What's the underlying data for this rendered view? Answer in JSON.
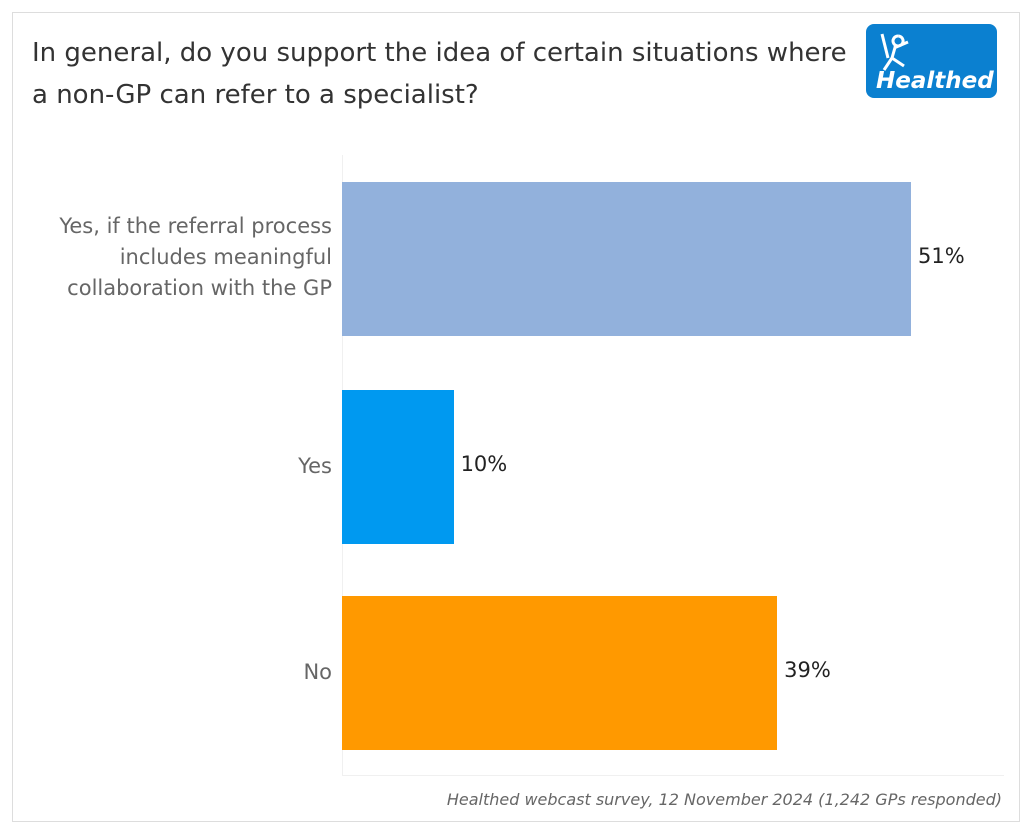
{
  "chart_data": {
    "type": "bar",
    "orientation": "horizontal",
    "title": "In general, do you support the idea of certain situations where a non-GP can refer to a specialist?",
    "categories": [
      "Yes, if the referral process includes meaningful collaboration with the GP",
      "Yes",
      "No"
    ],
    "values": [
      51,
      10,
      39
    ],
    "labels": [
      "51%",
      "10%",
      "39%"
    ],
    "colors": [
      "#92b1dc",
      "#0099f0",
      "#ff9900"
    ],
    "xlim": [
      0,
      51
    ],
    "grid": false
  },
  "logo": {
    "text": "Healthed"
  },
  "footer": "Healthed webcast survey, 12 November 2024 (1,242 GPs responded)"
}
